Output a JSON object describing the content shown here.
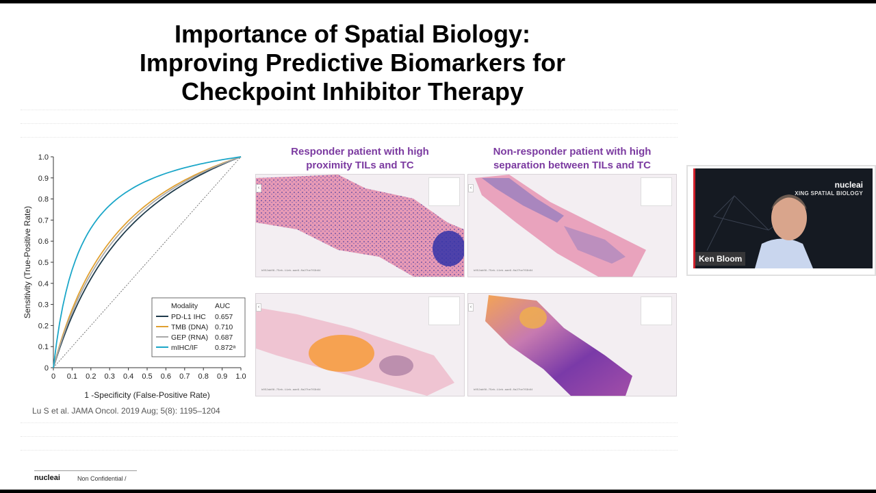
{
  "slide": {
    "title_lines": [
      "Importance of Spatial Biology:",
      "Improving Predictive Biomarkers for",
      "Checkpoint Inhibitor Therapy"
    ],
    "citation": "Lu S et al. JAMA Oncol. 2019 Aug; 5(8): 1195–1204",
    "captions": {
      "left": [
        "Responder patient with high",
        "proximity TILs and TC"
      ],
      "right": [
        "Non-responder patient with high",
        "separation between TILs and TC"
      ]
    },
    "tile_code": "b052ab08-75eb-11eb-aae9-0a27be703b64",
    "footer": {
      "logo": "nucleai",
      "text": "Non Confidential /"
    }
  },
  "video": {
    "brand": "nucleai",
    "tagline": "XING SPATIAL BIOLOGY",
    "speaker_name": "Ken Bloom"
  },
  "chart_data": {
    "type": "line",
    "xlabel": "1 -Specificity (False-Positive Rate)",
    "ylabel": "Sensitivity (True-Positive Rate)",
    "xlim": [
      0,
      1
    ],
    "ylim": [
      0,
      1
    ],
    "xticks": [
      "0",
      "0.1",
      "0.2",
      "0.3",
      "0.4",
      "0.5",
      "0.6",
      "0.7",
      "0.8",
      "0.9",
      "1.0"
    ],
    "yticks": [
      "0",
      "0.1",
      "0.2",
      "0.3",
      "0.4",
      "0.5",
      "0.6",
      "0.7",
      "0.8",
      "0.9",
      "1.0"
    ],
    "legend_header": {
      "modality": "Modality",
      "auc": "AUC"
    },
    "legend_position": "bottom-right",
    "series": [
      {
        "name": "PD-L1 IHC",
        "auc": "0.657",
        "color": "#1e3a4a",
        "a": 0.52
      },
      {
        "name": "TMB (DNA)",
        "auc": "0.710",
        "color": "#e0a030",
        "a": 0.41
      },
      {
        "name": "GEP (RNA)",
        "auc": "0.687",
        "color": "#a8a8a8",
        "a": 0.455
      },
      {
        "name": "mIHC/IF",
        "auc": "0.872ᵃ",
        "color": "#1aa6c8",
        "a": 0.147
      }
    ],
    "reference_line": true
  }
}
